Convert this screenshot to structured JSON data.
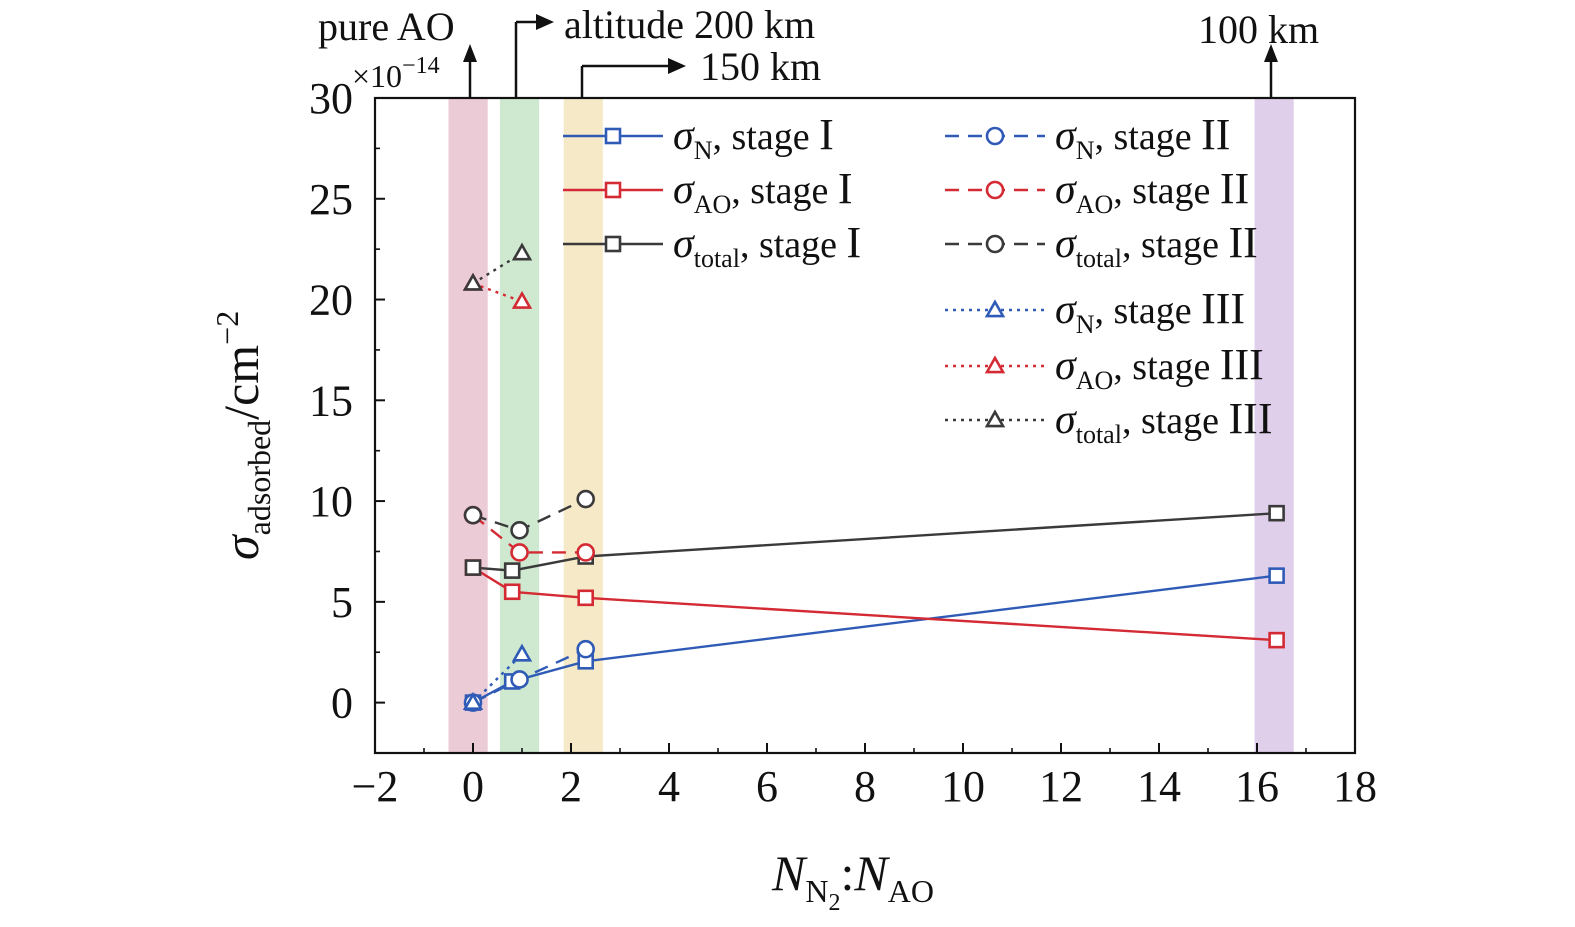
{
  "chart_data": {
    "type": "line",
    "multiplier": "×10",
    "multiplier_exp": "−14",
    "ylabel": {
      "sym": "σ",
      "sub": "adsorbed",
      "unit": "/cm",
      "exp": "−2"
    },
    "xlabel": {
      "n1": "N",
      "n1_sub": "N",
      "n1_subsub": "2",
      "colon": ":",
      "n2": "N",
      "n2_sub": "AO"
    },
    "xlim": [
      -2,
      18
    ],
    "ylim": [
      -2.5,
      30
    ],
    "x_ticks": [
      "−2",
      "0",
      "2",
      "4",
      "6",
      "8",
      "10",
      "12",
      "14",
      "16",
      "18"
    ],
    "x_tick_values": [
      -2,
      0,
      2,
      4,
      6,
      8,
      10,
      12,
      14,
      16,
      18
    ],
    "y_ticks": [
      "0",
      "5",
      "10",
      "15",
      "20",
      "25",
      "30"
    ],
    "y_tick_values": [
      0,
      5,
      10,
      15,
      20,
      25,
      30
    ],
    "bands": [
      {
        "x": [
          -0.5,
          0.3
        ],
        "color": "#e8c2cf"
      },
      {
        "x": [
          0.55,
          1.35
        ],
        "color": "#c6e5c7"
      },
      {
        "x": [
          1.85,
          2.65
        ],
        "color": "#f5e5bd"
      },
      {
        "x": [
          15.95,
          16.75
        ],
        "color": "#dac7e6"
      }
    ],
    "series": [
      {
        "name": "σ",
        "sub": "N",
        "stage": "stage",
        "roman": "I",
        "color": "#2f5bb7",
        "dash": "solid",
        "marker": "square",
        "points": [
          [
            0,
            0
          ],
          [
            0.8,
            1.05
          ],
          [
            2.3,
            2.05
          ],
          [
            16.4,
            6.3
          ]
        ]
      },
      {
        "name": "σ",
        "sub": "AO",
        "stage": "stage",
        "roman": "I",
        "color": "#d42a33",
        "dash": "solid",
        "marker": "square",
        "points": [
          [
            0,
            6.7
          ],
          [
            0.8,
            5.5
          ],
          [
            2.3,
            5.2
          ],
          [
            16.4,
            3.1
          ]
        ]
      },
      {
        "name": "σ",
        "sub": "total",
        "stage": "stage",
        "roman": "I",
        "color": "#3a3a3a",
        "dash": "solid",
        "marker": "square",
        "points": [
          [
            0,
            6.7
          ],
          [
            0.8,
            6.55
          ],
          [
            2.3,
            7.25
          ],
          [
            16.4,
            9.4
          ]
        ]
      },
      {
        "name": "σ",
        "sub": "N",
        "stage": "stage",
        "roman": "II",
        "color": "#2f5bb7",
        "dash": "dash",
        "marker": "circle",
        "points": [
          [
            0,
            0
          ],
          [
            0.95,
            1.15
          ],
          [
            2.3,
            2.65
          ]
        ]
      },
      {
        "name": "σ",
        "sub": "AO",
        "stage": "stage",
        "roman": "II",
        "color": "#d42a33",
        "dash": "dash",
        "marker": "circle",
        "points": [
          [
            0,
            9.3
          ],
          [
            0.95,
            7.45
          ],
          [
            2.3,
            7.45
          ]
        ]
      },
      {
        "name": "σ",
        "sub": "total",
        "stage": "stage",
        "roman": "II",
        "color": "#3a3a3a",
        "dash": "dash",
        "marker": "circle",
        "points": [
          [
            0,
            9.3
          ],
          [
            0.95,
            8.55
          ],
          [
            2.3,
            10.1
          ]
        ]
      },
      {
        "name": "σ",
        "sub": "N",
        "stage": "stage",
        "roman": "III",
        "color": "#2f5bb7",
        "dash": "dot",
        "marker": "triangle",
        "points": [
          [
            0,
            0
          ],
          [
            1.0,
            2.4
          ]
        ]
      },
      {
        "name": "σ",
        "sub": "AO",
        "stage": "stage",
        "roman": "III",
        "color": "#d42a33",
        "dash": "dot",
        "marker": "triangle",
        "points": [
          [
            0,
            20.8
          ],
          [
            1.0,
            19.9
          ]
        ]
      },
      {
        "name": "σ",
        "sub": "total",
        "stage": "stage",
        "roman": "III",
        "color": "#3a3a3a",
        "dash": "dot",
        "marker": "triangle",
        "points": [
          [
            0,
            20.8
          ],
          [
            1.0,
            22.3
          ]
        ]
      }
    ],
    "annotations": {
      "pure_ao": "pure AO",
      "alt_200": "altitude 200 km",
      "alt_150": "150 km",
      "alt_100": "100 km"
    }
  }
}
